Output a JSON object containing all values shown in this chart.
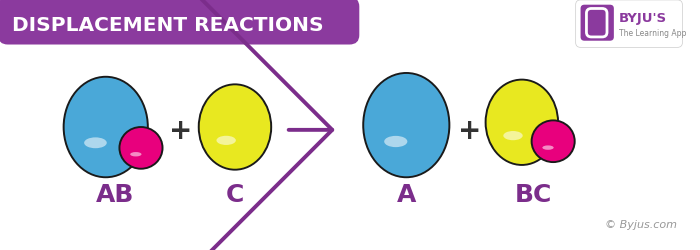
{
  "title": "DISPLACEMENT REACTIONS",
  "title_bg_color": "#8B3A9E",
  "title_text_color": "#FFFFFF",
  "bg_color": "#FFFFFF",
  "blue_color": "#4AA8D8",
  "blue_dark": "#2A6A99",
  "yellow_color": "#E8E820",
  "yellow_dark": "#A0A000",
  "pink_color": "#E8007D",
  "pink_dark": "#A00050",
  "purple_color": "#7B2D8B",
  "dark_outline": "#1A1A1A",
  "label_color": "#7B2D8B",
  "label_fontsize": 18,
  "label_fontweight": "bold",
  "labels": [
    "AB",
    "C",
    "A",
    "BC"
  ],
  "copyright": "© Byjus.com",
  "copyright_color": "#999999",
  "copyright_fontsize": 8,
  "plus_fontsize": 20,
  "plus_color": "#333333"
}
